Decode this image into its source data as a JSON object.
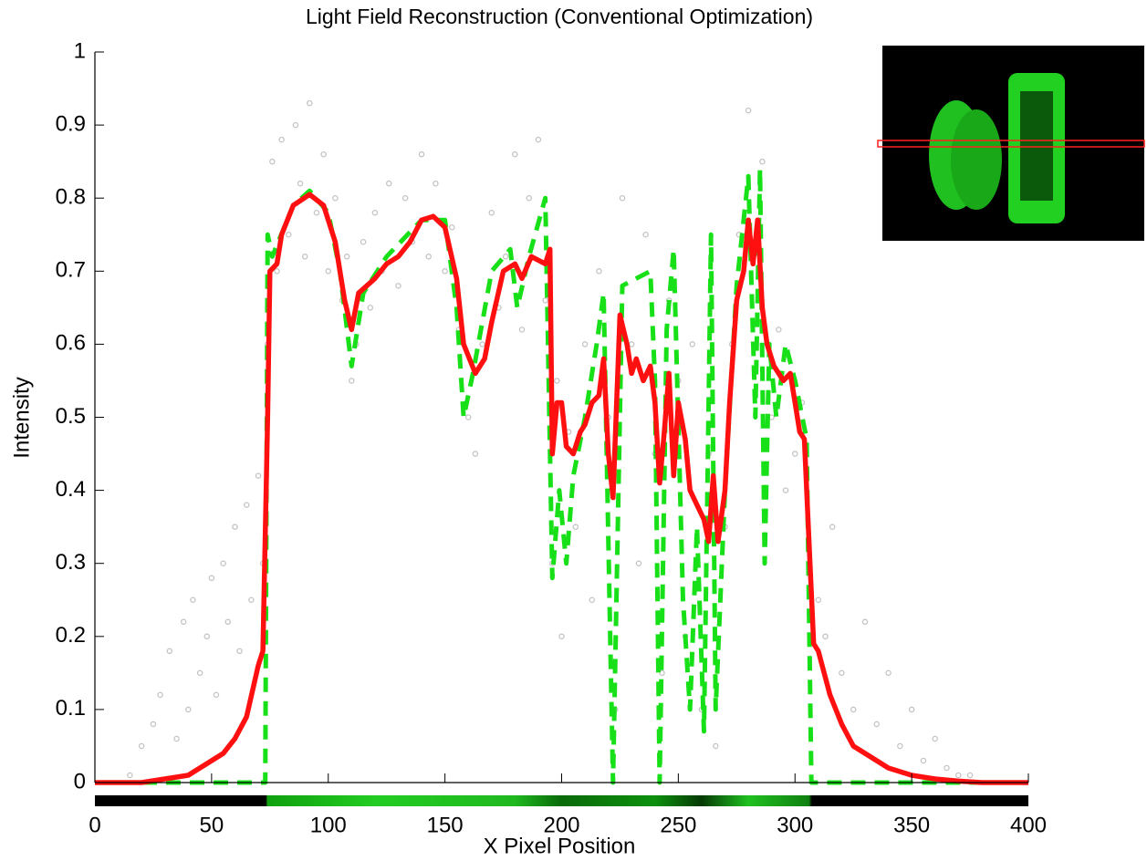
{
  "chart_data": {
    "type": "line",
    "title": "Light Field Reconstruction (Conventional Optimization)",
    "x_label": "X Pixel Position",
    "y_label": "Intensity",
    "xlim": [
      0,
      400
    ],
    "ylim": [
      0,
      1
    ],
    "xticks": [
      0,
      50,
      100,
      150,
      200,
      250,
      300,
      350,
      400
    ],
    "yticks": [
      0,
      0.1,
      0.2,
      0.3,
      0.4,
      0.5,
      0.6,
      0.7,
      0.8,
      0.9,
      1
    ],
    "series": [
      {
        "style": "markers",
        "color": "#c4c4c4",
        "x": [
          15,
          20,
          25,
          28,
          32,
          35,
          38,
          40,
          42,
          45,
          48,
          50,
          52,
          55,
          57,
          60,
          62,
          65,
          67,
          70,
          72,
          74,
          76,
          78,
          80,
          83,
          86,
          88,
          90,
          92,
          95,
          98,
          100,
          103,
          106,
          108,
          110,
          112,
          115,
          118,
          120,
          123,
          126,
          130,
          133,
          136,
          140,
          143,
          146,
          150,
          153,
          156,
          160,
          163,
          166,
          170,
          173,
          176,
          180,
          183,
          186,
          190,
          193,
          196,
          198,
          200,
          203,
          206,
          210,
          213,
          216,
          220,
          223,
          226,
          230,
          233,
          236,
          240,
          243,
          246,
          250,
          253,
          256,
          260,
          263,
          266,
          270,
          273,
          276,
          280,
          283,
          286,
          290,
          293,
          296,
          300,
          303,
          306,
          310,
          313,
          316,
          320,
          325,
          330,
          335,
          340,
          345,
          350,
          355,
          360,
          365,
          370,
          375
        ],
        "values": [
          0.01,
          0.05,
          0.08,
          0.12,
          0.18,
          0.06,
          0.22,
          0.1,
          0.25,
          0.15,
          0.2,
          0.28,
          0.12,
          0.3,
          0.22,
          0.35,
          0.18,
          0.38,
          0.25,
          0.42,
          0.3,
          0.6,
          0.85,
          0.7,
          0.88,
          0.75,
          0.9,
          0.82,
          0.72,
          0.93,
          0.78,
          0.86,
          0.7,
          0.8,
          0.66,
          0.72,
          0.55,
          0.6,
          0.74,
          0.65,
          0.78,
          0.7,
          0.82,
          0.68,
          0.8,
          0.74,
          0.86,
          0.72,
          0.82,
          0.7,
          0.76,
          0.62,
          0.5,
          0.45,
          0.6,
          0.78,
          0.65,
          0.72,
          0.86,
          0.62,
          0.8,
          0.88,
          0.66,
          0.3,
          0.55,
          0.2,
          0.48,
          0.35,
          0.6,
          0.25,
          0.7,
          0.5,
          0.1,
          0.8,
          0.6,
          0.3,
          0.75,
          0.45,
          0.15,
          0.66,
          0.55,
          0.2,
          0.6,
          0.1,
          0.45,
          0.05,
          0.35,
          0.6,
          0.75,
          0.92,
          0.6,
          0.85,
          0.5,
          0.62,
          0.4,
          0.45,
          0.52,
          0.3,
          0.25,
          0.2,
          0.35,
          0.15,
          0.1,
          0.22,
          0.08,
          0.15,
          0.05,
          0.1,
          0.03,
          0.06,
          0.02,
          0.01,
          0.01
        ]
      },
      {
        "style": "dashed",
        "color": "#18e018",
        "x": [
          0,
          73,
          74,
          76,
          85,
          92,
          100,
          105,
          110,
          115,
          125,
          140,
          150,
          155,
          158,
          162,
          170,
          178,
          181,
          186,
          193,
          196,
          199,
          202,
          205,
          210,
          215,
          218,
          222,
          226,
          232,
          238,
          240,
          242,
          245,
          248,
          252,
          255,
          258,
          261,
          264,
          266,
          270,
          275,
          280,
          283,
          285,
          287,
          289,
          292,
          296,
          300,
          305,
          307,
          400
        ],
        "values": [
          0,
          0,
          0.75,
          0.72,
          0.79,
          0.81,
          0.78,
          0.7,
          0.57,
          0.67,
          0.72,
          0.77,
          0.77,
          0.65,
          0.5,
          0.56,
          0.7,
          0.73,
          0.65,
          0.72,
          0.8,
          0.28,
          0.4,
          0.3,
          0.42,
          0.5,
          0.6,
          0.67,
          0,
          0.68,
          0.69,
          0.7,
          0.55,
          0,
          0.62,
          0.73,
          0.25,
          0.1,
          0.35,
          0.07,
          0.75,
          0.1,
          0.4,
          0.68,
          0.83,
          0.5,
          0.84,
          0.3,
          0.6,
          0.5,
          0.6,
          0.55,
          0.47,
          0,
          0
        ]
      },
      {
        "style": "solid",
        "color": "#ff1010",
        "x": [
          0,
          10,
          20,
          30,
          40,
          50,
          55,
          60,
          65,
          70,
          72,
          74,
          75,
          78,
          80,
          85,
          92,
          98,
          103,
          107,
          110,
          113,
          120,
          125,
          130,
          135,
          140,
          145,
          150,
          155,
          158,
          163,
          167,
          170,
          175,
          180,
          183,
          187,
          193,
          195,
          196,
          198,
          200,
          202,
          205,
          208,
          210,
          213,
          216,
          218,
          220,
          222,
          225,
          228,
          230,
          232,
          235,
          238,
          240,
          242,
          244,
          246,
          248,
          250,
          253,
          255,
          258,
          261,
          263,
          265,
          267,
          270,
          272,
          275,
          278,
          280,
          282,
          284,
          286,
          288,
          291,
          295,
          298,
          300,
          302,
          304,
          306,
          308,
          310,
          315,
          320,
          325,
          330,
          335,
          340,
          350,
          360,
          370,
          380,
          400
        ],
        "values": [
          0,
          0,
          0,
          0.005,
          0.01,
          0.03,
          0.04,
          0.06,
          0.09,
          0.16,
          0.18,
          0.5,
          0.7,
          0.71,
          0.75,
          0.79,
          0.805,
          0.79,
          0.74,
          0.66,
          0.62,
          0.67,
          0.69,
          0.71,
          0.72,
          0.74,
          0.77,
          0.775,
          0.76,
          0.69,
          0.6,
          0.56,
          0.58,
          0.63,
          0.7,
          0.71,
          0.69,
          0.72,
          0.71,
          0.73,
          0.45,
          0.52,
          0.52,
          0.46,
          0.45,
          0.48,
          0.49,
          0.52,
          0.53,
          0.58,
          0.45,
          0.39,
          0.64,
          0.6,
          0.56,
          0.58,
          0.55,
          0.57,
          0.52,
          0.41,
          0.48,
          0.56,
          0.42,
          0.52,
          0.47,
          0.4,
          0.38,
          0.36,
          0.33,
          0.42,
          0.33,
          0.4,
          0.52,
          0.66,
          0.7,
          0.77,
          0.71,
          0.77,
          0.65,
          0.6,
          0.57,
          0.55,
          0.56,
          0.52,
          0.48,
          0.47,
          0.33,
          0.19,
          0.18,
          0.12,
          0.08,
          0.05,
          0.04,
          0.03,
          0.02,
          0.01,
          0.005,
          0.002,
          0,
          0
        ]
      }
    ]
  }
}
